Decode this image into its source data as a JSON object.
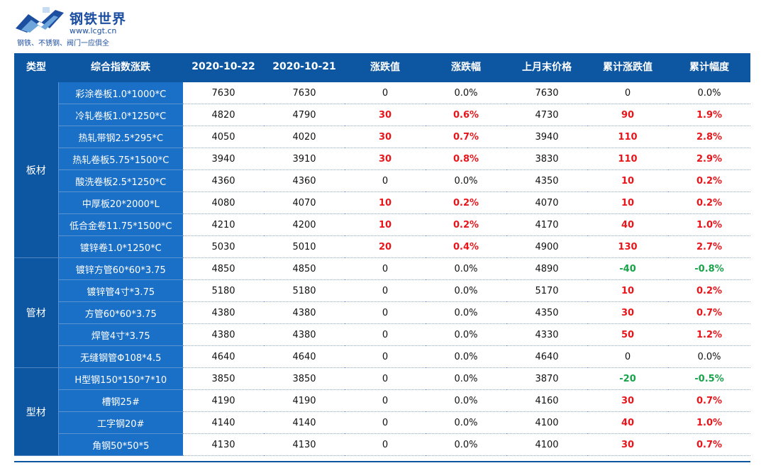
{
  "logo": {
    "brand": "钢铁世界",
    "url": "www.lcgt.cn",
    "slogan": "钢铁、不锈钢、阀门一应俱全",
    "colors": {
      "brand": "#1d4fa1",
      "accent": "#0d56a1"
    }
  },
  "table": {
    "headers": [
      "类型",
      "综合指数涨跌",
      "2020-10-22",
      "2020-10-21",
      "涨跌值",
      "涨跌幅",
      "上月末价格",
      "累计涨跌值",
      "累计幅度"
    ],
    "colors": {
      "header_bg": "#0d56a1",
      "name_bg": "#1a6fc6",
      "up": "#e8151b",
      "down": "#19a34a"
    },
    "groups": [
      {
        "category": "板材",
        "rows": [
          {
            "name": "彩涂卷板1.0*1000*C",
            "d1": "7630",
            "d2": "7630",
            "chg": "0",
            "pct": "0.0%",
            "last": "7630",
            "cum": "0",
            "cumpct": "0.0%",
            "chg_dir": "flat",
            "cum_dir": "flat"
          },
          {
            "name": "冷轧卷板1.0*1250*C",
            "d1": "4820",
            "d2": "4790",
            "chg": "30",
            "pct": "0.6%",
            "last": "4730",
            "cum": "90",
            "cumpct": "1.9%",
            "chg_dir": "up",
            "cum_dir": "up"
          },
          {
            "name": "热轧带钢2.5*295*C",
            "d1": "4050",
            "d2": "4020",
            "chg": "30",
            "pct": "0.7%",
            "last": "3940",
            "cum": "110",
            "cumpct": "2.8%",
            "chg_dir": "up",
            "cum_dir": "up"
          },
          {
            "name": "热轧卷板5.75*1500*C",
            "d1": "3940",
            "d2": "3910",
            "chg": "30",
            "pct": "0.8%",
            "last": "3830",
            "cum": "110",
            "cumpct": "2.9%",
            "chg_dir": "up",
            "cum_dir": "up"
          },
          {
            "name": "酸洗卷板2.5*1250*C",
            "d1": "4360",
            "d2": "4360",
            "chg": "0",
            "pct": "0.0%",
            "last": "4350",
            "cum": "10",
            "cumpct": "0.2%",
            "chg_dir": "flat",
            "cum_dir": "up"
          },
          {
            "name": "中厚板20*2000*L",
            "d1": "4080",
            "d2": "4070",
            "chg": "10",
            "pct": "0.2%",
            "last": "4070",
            "cum": "10",
            "cumpct": "0.2%",
            "chg_dir": "up",
            "cum_dir": "up"
          },
          {
            "name": "低合金卷11.75*1500*C",
            "d1": "4210",
            "d2": "4200",
            "chg": "10",
            "pct": "0.2%",
            "last": "4170",
            "cum": "40",
            "cumpct": "1.0%",
            "chg_dir": "up",
            "cum_dir": "up"
          },
          {
            "name": "镀锌卷1.0*1250*C",
            "d1": "5030",
            "d2": "5010",
            "chg": "20",
            "pct": "0.4%",
            "last": "4900",
            "cum": "130",
            "cumpct": "2.7%",
            "chg_dir": "up",
            "cum_dir": "up"
          }
        ]
      },
      {
        "category": "管材",
        "rows": [
          {
            "name": "镀锌方管60*60*3.75",
            "d1": "4850",
            "d2": "4850",
            "chg": "0",
            "pct": "0.0%",
            "last": "4890",
            "cum": "-40",
            "cumpct": "-0.8%",
            "chg_dir": "flat",
            "cum_dir": "down"
          },
          {
            "name": "镀锌管4寸*3.75",
            "d1": "5180",
            "d2": "5180",
            "chg": "0",
            "pct": "0.0%",
            "last": "5170",
            "cum": "10",
            "cumpct": "0.2%",
            "chg_dir": "flat",
            "cum_dir": "up"
          },
          {
            "name": "方管60*60*3.75",
            "d1": "4380",
            "d2": "4380",
            "chg": "0",
            "pct": "0.0%",
            "last": "4350",
            "cum": "30",
            "cumpct": "0.7%",
            "chg_dir": "flat",
            "cum_dir": "up"
          },
          {
            "name": "焊管4寸*3.75",
            "d1": "4380",
            "d2": "4380",
            "chg": "0",
            "pct": "0.0%",
            "last": "4330",
            "cum": "50",
            "cumpct": "1.2%",
            "chg_dir": "flat",
            "cum_dir": "up"
          },
          {
            "name": "无缝钢管Φ108*4.5",
            "d1": "4640",
            "d2": "4640",
            "chg": "0",
            "pct": "0.0%",
            "last": "4640",
            "cum": "0",
            "cumpct": "0.0%",
            "chg_dir": "flat",
            "cum_dir": "flat"
          }
        ]
      },
      {
        "category": "型材",
        "rows": [
          {
            "name": "H型钢150*150*7*10",
            "d1": "3850",
            "d2": "3850",
            "chg": "0",
            "pct": "0.0%",
            "last": "3870",
            "cum": "-20",
            "cumpct": "-0.5%",
            "chg_dir": "flat",
            "cum_dir": "down"
          },
          {
            "name": "槽钢25#",
            "d1": "4190",
            "d2": "4190",
            "chg": "0",
            "pct": "0.0%",
            "last": "4160",
            "cum": "30",
            "cumpct": "0.7%",
            "chg_dir": "flat",
            "cum_dir": "up"
          },
          {
            "name": "工字钢20#",
            "d1": "4140",
            "d2": "4140",
            "chg": "0",
            "pct": "0.0%",
            "last": "4100",
            "cum": "40",
            "cumpct": "1.0%",
            "chg_dir": "flat",
            "cum_dir": "up"
          },
          {
            "name": "角钢50*50*5",
            "d1": "4130",
            "d2": "4130",
            "chg": "0",
            "pct": "0.0%",
            "last": "4100",
            "cum": "30",
            "cumpct": "0.7%",
            "chg_dir": "flat",
            "cum_dir": "up"
          }
        ]
      }
    ]
  }
}
